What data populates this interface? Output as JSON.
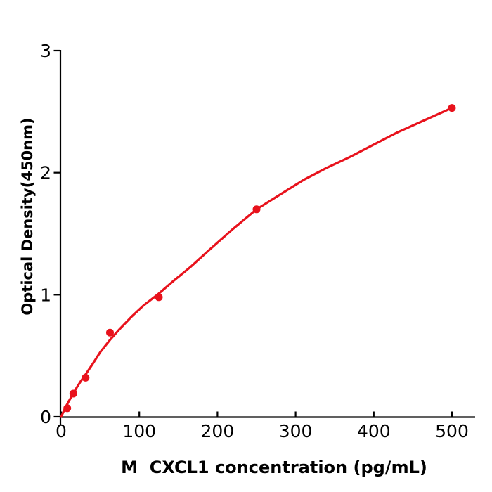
{
  "figure": {
    "background": "#ffffff",
    "axis_color": "#000000",
    "accent_red": "#e8121c"
  },
  "chart_data": {
    "type": "scatter",
    "title": "",
    "xlabel": "M  CXCL1 concentration (pg/mL)",
    "ylabel": "Optical Density(450nm)",
    "xlim": [
      0,
      530
    ],
    "ylim": [
      0,
      3
    ],
    "x_ticks": [
      {
        "value": 0,
        "label": "0"
      },
      {
        "value": 100,
        "label": "100"
      },
      {
        "value": 200,
        "label": "200"
      },
      {
        "value": 300,
        "label": "300"
      },
      {
        "value": 400,
        "label": "400"
      },
      {
        "value": 500,
        "label": "500"
      }
    ],
    "y_ticks": [
      {
        "value": 0,
        "label": "0"
      },
      {
        "value": 1,
        "label": "1"
      },
      {
        "value": 2,
        "label": "2"
      },
      {
        "value": 3,
        "label": "3"
      }
    ],
    "grid": false,
    "legend": null,
    "series": [
      {
        "name": "standard-points",
        "type": "scatter",
        "color": "#e8121c",
        "marker": "circle",
        "x": [
          7.8,
          15.6,
          31.25,
          62.5,
          125,
          250,
          500
        ],
        "y": [
          0.07,
          0.19,
          0.32,
          0.69,
          0.98,
          1.7,
          2.53
        ]
      },
      {
        "name": "fitted-curve",
        "type": "line",
        "color": "#e8121c",
        "x": [
          0,
          5,
          10,
          15,
          20,
          25,
          30,
          40,
          50,
          62.5,
          75,
          90,
          105,
          125,
          145,
          165,
          190,
          220,
          250,
          280,
          310,
          340,
          370,
          400,
          430,
          465,
          500
        ],
        "y": [
          0.0,
          0.07,
          0.13,
          0.185,
          0.24,
          0.29,
          0.335,
          0.43,
          0.53,
          0.63,
          0.72,
          0.82,
          0.91,
          1.01,
          1.12,
          1.225,
          1.37,
          1.54,
          1.7,
          1.82,
          1.94,
          2.04,
          2.13,
          2.23,
          2.33,
          2.43,
          2.53
        ]
      }
    ]
  }
}
